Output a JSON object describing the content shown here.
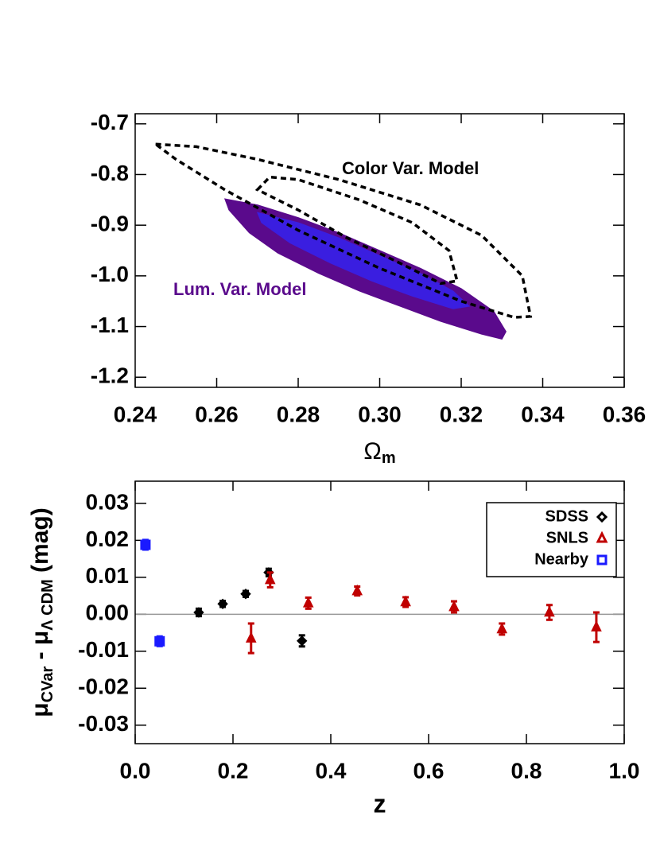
{
  "chart_data": [
    {
      "type": "contour",
      "xlabel": "Ω",
      "xlabel_subscript": "m",
      "xlim": [
        0.24,
        0.36
      ],
      "xticks": [
        0.24,
        0.26,
        0.28,
        {
          "value": 0.3,
          "label": "0.30"
        },
        0.32,
        0.34,
        0.36
      ],
      "ylim": [
        -1.22,
        -0.68
      ],
      "yticks": [
        -0.7,
        -0.8,
        -0.9,
        {
          "value": -1.0,
          "label": "-1.0"
        },
        -1.1,
        -1.2
      ],
      "regions": [
        {
          "label": "Lum. Var. Model",
          "color": "#5a0a8c",
          "style": "filled",
          "levels": [
            {
              "color": "#5a0a8c",
              "x": [
                0.262,
                0.27,
                0.28,
                0.29,
                0.3,
                0.31,
                0.32,
                0.328,
                0.331,
                0.33,
                0.325,
                0.315,
                0.305,
                0.295,
                0.285,
                0.275,
                0.268,
                0.263
              ],
              "y": [
                -0.848,
                -0.86,
                -0.885,
                -0.915,
                -0.95,
                -0.985,
                -1.025,
                -1.07,
                -1.11,
                -1.125,
                -1.115,
                -1.09,
                -1.06,
                -1.03,
                -0.995,
                -0.955,
                -0.915,
                -0.87
              ]
            },
            {
              "color": "#3a1ee0",
              "x": [
                0.27,
                0.28,
                0.29,
                0.3,
                0.31,
                0.318,
                0.322,
                0.318,
                0.308,
                0.298,
                0.288,
                0.278,
                0.271
              ],
              "y": [
                -0.875,
                -0.895,
                -0.925,
                -0.96,
                -0.995,
                -1.03,
                -1.06,
                -1.065,
                -1.04,
                -1.01,
                -0.975,
                -0.935,
                -0.895
              ]
            }
          ]
        },
        {
          "label": "Color Var. Model",
          "color": "#000000",
          "style": "dashed",
          "levels": [
            {
              "color": "#000000",
              "x": [
                0.245,
                0.255,
                0.27,
                0.29,
                0.31,
                0.325,
                0.335,
                0.337,
                0.333,
                0.32,
                0.3,
                0.28,
                0.262,
                0.25
              ],
              "y": [
                -0.74,
                -0.745,
                -0.77,
                -0.81,
                -0.86,
                -0.92,
                -1.0,
                -1.08,
                -1.082,
                -1.05,
                -0.985,
                -0.91,
                -0.83,
                -0.77
              ]
            },
            {
              "color": "#000000",
              "x": [
                0.27,
                0.273,
                0.28,
                0.295,
                0.308,
                0.317,
                0.319,
                0.315,
                0.305,
                0.292,
                0.28
              ],
              "y": [
                -0.83,
                -0.805,
                -0.81,
                -0.85,
                -0.895,
                -0.95,
                -1.01,
                -1.015,
                -0.975,
                -0.925,
                -0.87
              ]
            }
          ]
        }
      ]
    },
    {
      "type": "errorbar",
      "xlabel": "z",
      "ylabel_parts": [
        {
          "text": "μ",
          "sub": false
        },
        {
          "text": "CVar",
          "sub": true
        },
        {
          "text": " - μ",
          "sub": false
        },
        {
          "text": "Λ CDM",
          "sub": true
        },
        {
          "text": " (mag)",
          "sub": false
        }
      ],
      "xlim": [
        0,
        1
      ],
      "xticks": [
        {
          "value": 0,
          "label": "0.0"
        },
        0.2,
        0.4,
        0.6,
        0.8,
        {
          "value": 1,
          "label": "1.0"
        }
      ],
      "ylim": [
        -0.035,
        0.036
      ],
      "yticks": [
        -0.03,
        -0.02,
        -0.01,
        {
          "value": 0,
          "label": "0.00"
        },
        0.01,
        0.02,
        0.03
      ],
      "reference_line": 0,
      "legend": "upper right",
      "series": [
        {
          "name": "SDSS",
          "color": "#000000",
          "marker": "diamond",
          "x": [
            0.13,
            0.179,
            0.226,
            0.273,
            0.341
          ],
          "values": [
            0.0005,
            0.0028,
            0.0055,
            0.0113,
            -0.0072
          ],
          "errors": [
            0.001,
            0.0008,
            0.0008,
            0.001,
            0.0015
          ]
        },
        {
          "name": "SNLS",
          "color": "#c00000",
          "marker": "triangle",
          "x": [
            0.237,
            0.276,
            0.354,
            0.454,
            0.553,
            0.652,
            0.75,
            0.847,
            0.943
          ],
          "values": [
            -0.0065,
            0.0093,
            0.003,
            0.0063,
            0.0033,
            0.002,
            -0.004,
            0.0005,
            -0.0035
          ],
          "errors": [
            0.004,
            0.002,
            0.0015,
            0.0012,
            0.0013,
            0.0015,
            0.0015,
            0.002,
            0.004
          ]
        },
        {
          "name": "Nearby",
          "color": "#1a1aff",
          "marker": "square",
          "x": [
            0.021,
            0.05
          ],
          "values": [
            0.0188,
            -0.0073
          ],
          "errors": [
            0.0013,
            0.0013
          ]
        }
      ]
    }
  ]
}
